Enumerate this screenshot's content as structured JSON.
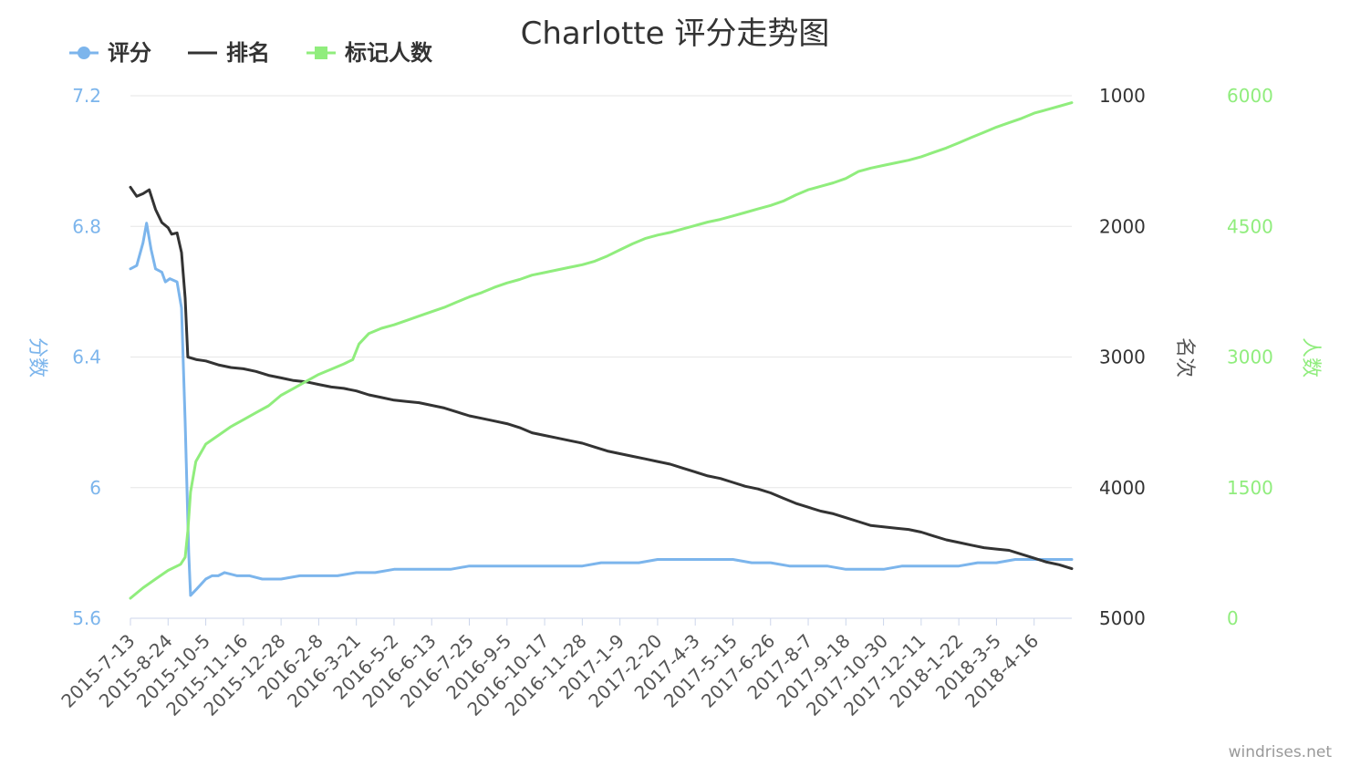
{
  "chart_data": {
    "type": "line",
    "title": "Charlotte 评分走势图",
    "x_tick_labels": [
      "2015-7-13",
      "2015-8-24",
      "2015-10-5",
      "2015-11-16",
      "2015-12-28",
      "2016-2-8",
      "2016-3-21",
      "2016-5-2",
      "2016-6-13",
      "2016-7-25",
      "2016-9-5",
      "2016-10-17",
      "2016-11-28",
      "2017-1-9",
      "2017-2-20",
      "2017-4-3",
      "2017-5-15",
      "2017-6-26",
      "2017-8-7",
      "2017-9-18",
      "2017-10-30",
      "2017-12-11",
      "2018-1-22",
      "2018-3-5",
      "2018-4-16"
    ],
    "x_start": "2015-7-13",
    "x_end": "2018-5-28",
    "axes": {
      "score": {
        "title": "分数",
        "min": 5.6,
        "max": 7.2,
        "ticks": [
          "5.6",
          "6",
          "6.4",
          "6.8",
          "7.2"
        ],
        "color": "#7cb5ec"
      },
      "rank": {
        "title": "名次",
        "min": 1000,
        "max": 5000,
        "reversed": true,
        "ticks": [
          "1000",
          "2000",
          "3000",
          "4000",
          "5000"
        ],
        "color": "#333333"
      },
      "count": {
        "title": "人数",
        "min": 0,
        "max": 6000,
        "ticks": [
          "0",
          "1500",
          "3000",
          "4500",
          "6000"
        ],
        "color": "#90ed7d"
      }
    },
    "grid": true,
    "legend_position": "top-left",
    "series": [
      {
        "name": "评分",
        "axis": "score",
        "color": "#7cb5ec",
        "points": [
          [
            "2015-07-13",
            6.67
          ],
          [
            "2015-07-20",
            6.68
          ],
          [
            "2015-07-27",
            6.75
          ],
          [
            "2015-07-31",
            6.81
          ],
          [
            "2015-08-05",
            6.73
          ],
          [
            "2015-08-10",
            6.67
          ],
          [
            "2015-08-17",
            6.66
          ],
          [
            "2015-08-21",
            6.63
          ],
          [
            "2015-08-26",
            6.64
          ],
          [
            "2015-09-03",
            6.63
          ],
          [
            "2015-09-08",
            6.55
          ],
          [
            "2015-09-12",
            6.2
          ],
          [
            "2015-09-16",
            5.8
          ],
          [
            "2015-09-18",
            5.67
          ],
          [
            "2015-09-25",
            5.69
          ],
          [
            "2015-10-05",
            5.72
          ],
          [
            "2015-10-12",
            5.73
          ],
          [
            "2015-10-19",
            5.73
          ],
          [
            "2015-10-26",
            5.74
          ],
          [
            "2015-11-09",
            5.73
          ],
          [
            "2015-11-23",
            5.73
          ],
          [
            "2015-12-07",
            5.72
          ],
          [
            "2015-12-28",
            5.72
          ],
          [
            "2016-01-18",
            5.73
          ],
          [
            "2016-02-08",
            5.73
          ],
          [
            "2016-02-29",
            5.73
          ],
          [
            "2016-03-21",
            5.74
          ],
          [
            "2016-04-11",
            5.74
          ],
          [
            "2016-05-02",
            5.75
          ],
          [
            "2016-05-23",
            5.75
          ],
          [
            "2016-06-13",
            5.75
          ],
          [
            "2016-07-04",
            5.75
          ],
          [
            "2016-07-25",
            5.76
          ],
          [
            "2016-08-15",
            5.76
          ],
          [
            "2016-09-05",
            5.76
          ],
          [
            "2016-09-26",
            5.76
          ],
          [
            "2016-10-17",
            5.76
          ],
          [
            "2016-11-07",
            5.76
          ],
          [
            "2016-11-28",
            5.76
          ],
          [
            "2016-12-19",
            5.77
          ],
          [
            "2017-01-09",
            5.77
          ],
          [
            "2017-01-30",
            5.77
          ],
          [
            "2017-02-20",
            5.78
          ],
          [
            "2017-03-13",
            5.78
          ],
          [
            "2017-04-03",
            5.78
          ],
          [
            "2017-04-24",
            5.78
          ],
          [
            "2017-05-15",
            5.78
          ],
          [
            "2017-06-05",
            5.77
          ],
          [
            "2017-06-26",
            5.77
          ],
          [
            "2017-07-17",
            5.76
          ],
          [
            "2017-08-07",
            5.76
          ],
          [
            "2017-08-28",
            5.76
          ],
          [
            "2017-09-18",
            5.75
          ],
          [
            "2017-10-09",
            5.75
          ],
          [
            "2017-10-30",
            5.75
          ],
          [
            "2017-11-20",
            5.76
          ],
          [
            "2017-12-11",
            5.76
          ],
          [
            "2018-01-01",
            5.76
          ],
          [
            "2018-01-22",
            5.76
          ],
          [
            "2018-02-12",
            5.77
          ],
          [
            "2018-03-05",
            5.77
          ],
          [
            "2018-03-26",
            5.78
          ],
          [
            "2018-04-16",
            5.78
          ],
          [
            "2018-05-07",
            5.78
          ],
          [
            "2018-05-28",
            5.78
          ]
        ]
      },
      {
        "name": "排名",
        "axis": "rank",
        "color": "#333333",
        "points": [
          [
            "2015-07-13",
            1700
          ],
          [
            "2015-07-20",
            1770
          ],
          [
            "2015-07-27",
            1750
          ],
          [
            "2015-08-03",
            1720
          ],
          [
            "2015-08-10",
            1870
          ],
          [
            "2015-08-17",
            1970
          ],
          [
            "2015-08-24",
            2010
          ],
          [
            "2015-08-28",
            2060
          ],
          [
            "2015-09-03",
            2050
          ],
          [
            "2015-09-08",
            2200
          ],
          [
            "2015-09-12",
            2550
          ],
          [
            "2015-09-15",
            3000
          ],
          [
            "2015-09-25",
            3020
          ],
          [
            "2015-10-05",
            3030
          ],
          [
            "2015-10-19",
            3060
          ],
          [
            "2015-11-02",
            3080
          ],
          [
            "2015-11-16",
            3090
          ],
          [
            "2015-11-30",
            3110
          ],
          [
            "2015-12-14",
            3140
          ],
          [
            "2015-12-28",
            3160
          ],
          [
            "2016-01-11",
            3180
          ],
          [
            "2016-01-25",
            3190
          ],
          [
            "2016-02-08",
            3210
          ],
          [
            "2016-02-22",
            3230
          ],
          [
            "2016-03-07",
            3240
          ],
          [
            "2016-03-21",
            3260
          ],
          [
            "2016-04-04",
            3290
          ],
          [
            "2016-04-18",
            3310
          ],
          [
            "2016-05-02",
            3330
          ],
          [
            "2016-05-16",
            3340
          ],
          [
            "2016-05-30",
            3350
          ],
          [
            "2016-06-13",
            3370
          ],
          [
            "2016-06-27",
            3390
          ],
          [
            "2016-07-11",
            3420
          ],
          [
            "2016-07-25",
            3450
          ],
          [
            "2016-08-08",
            3470
          ],
          [
            "2016-08-22",
            3490
          ],
          [
            "2016-09-05",
            3510
          ],
          [
            "2016-09-19",
            3540
          ],
          [
            "2016-10-03",
            3580
          ],
          [
            "2016-10-17",
            3600
          ],
          [
            "2016-10-31",
            3620
          ],
          [
            "2016-11-14",
            3640
          ],
          [
            "2016-11-28",
            3660
          ],
          [
            "2016-12-12",
            3690
          ],
          [
            "2016-12-26",
            3720
          ],
          [
            "2017-01-09",
            3740
          ],
          [
            "2017-01-23",
            3760
          ],
          [
            "2017-02-06",
            3780
          ],
          [
            "2017-02-20",
            3800
          ],
          [
            "2017-03-06",
            3820
          ],
          [
            "2017-03-20",
            3850
          ],
          [
            "2017-04-03",
            3880
          ],
          [
            "2017-04-17",
            3910
          ],
          [
            "2017-05-01",
            3930
          ],
          [
            "2017-05-15",
            3960
          ],
          [
            "2017-05-29",
            3990
          ],
          [
            "2017-06-12",
            4010
          ],
          [
            "2017-06-26",
            4040
          ],
          [
            "2017-07-10",
            4080
          ],
          [
            "2017-07-24",
            4120
          ],
          [
            "2017-08-07",
            4150
          ],
          [
            "2017-08-21",
            4180
          ],
          [
            "2017-09-04",
            4200
          ],
          [
            "2017-09-18",
            4230
          ],
          [
            "2017-10-02",
            4260
          ],
          [
            "2017-10-16",
            4290
          ],
          [
            "2017-10-30",
            4300
          ],
          [
            "2017-11-13",
            4310
          ],
          [
            "2017-11-27",
            4320
          ],
          [
            "2017-12-11",
            4340
          ],
          [
            "2017-12-25",
            4370
          ],
          [
            "2018-01-08",
            4400
          ],
          [
            "2018-01-22",
            4420
          ],
          [
            "2018-02-05",
            4440
          ],
          [
            "2018-02-19",
            4460
          ],
          [
            "2018-03-05",
            4470
          ],
          [
            "2018-03-19",
            4480
          ],
          [
            "2018-04-02",
            4510
          ],
          [
            "2018-04-16",
            4540
          ],
          [
            "2018-04-30",
            4570
          ],
          [
            "2018-05-14",
            4590
          ],
          [
            "2018-05-28",
            4620
          ]
        ]
      },
      {
        "name": "标记人数",
        "axis": "count",
        "color": "#90ed7d",
        "points": [
          [
            "2015-07-13",
            230
          ],
          [
            "2015-07-27",
            350
          ],
          [
            "2015-08-10",
            450
          ],
          [
            "2015-08-24",
            550
          ],
          [
            "2015-09-07",
            620
          ],
          [
            "2015-09-12",
            700
          ],
          [
            "2015-09-15",
            1000
          ],
          [
            "2015-09-18",
            1450
          ],
          [
            "2015-09-24",
            1800
          ],
          [
            "2015-10-05",
            2000
          ],
          [
            "2015-10-19",
            2100
          ],
          [
            "2015-11-02",
            2200
          ],
          [
            "2015-11-16",
            2280
          ],
          [
            "2015-11-30",
            2360
          ],
          [
            "2015-12-14",
            2440
          ],
          [
            "2015-12-28",
            2560
          ],
          [
            "2016-01-11",
            2640
          ],
          [
            "2016-01-25",
            2720
          ],
          [
            "2016-02-08",
            2800
          ],
          [
            "2016-02-22",
            2860
          ],
          [
            "2016-03-07",
            2920
          ],
          [
            "2016-03-17",
            2970
          ],
          [
            "2016-03-24",
            3150
          ],
          [
            "2016-04-04",
            3270
          ],
          [
            "2016-04-18",
            3330
          ],
          [
            "2016-05-02",
            3370
          ],
          [
            "2016-05-16",
            3420
          ],
          [
            "2016-05-30",
            3470
          ],
          [
            "2016-06-13",
            3520
          ],
          [
            "2016-06-27",
            3570
          ],
          [
            "2016-07-11",
            3630
          ],
          [
            "2016-07-25",
            3690
          ],
          [
            "2016-08-08",
            3740
          ],
          [
            "2016-08-22",
            3800
          ],
          [
            "2016-09-05",
            3850
          ],
          [
            "2016-09-19",
            3890
          ],
          [
            "2016-10-03",
            3940
          ],
          [
            "2016-10-17",
            3970
          ],
          [
            "2016-10-31",
            4000
          ],
          [
            "2016-11-14",
            4030
          ],
          [
            "2016-11-28",
            4060
          ],
          [
            "2016-12-12",
            4100
          ],
          [
            "2016-12-26",
            4160
          ],
          [
            "2017-01-09",
            4230
          ],
          [
            "2017-01-23",
            4300
          ],
          [
            "2017-02-06",
            4360
          ],
          [
            "2017-02-20",
            4400
          ],
          [
            "2017-03-06",
            4430
          ],
          [
            "2017-03-20",
            4470
          ],
          [
            "2017-04-03",
            4510
          ],
          [
            "2017-04-17",
            4550
          ],
          [
            "2017-05-01",
            4580
          ],
          [
            "2017-05-15",
            4620
          ],
          [
            "2017-05-29",
            4660
          ],
          [
            "2017-06-12",
            4700
          ],
          [
            "2017-06-26",
            4740
          ],
          [
            "2017-07-10",
            4790
          ],
          [
            "2017-07-24",
            4860
          ],
          [
            "2017-08-07",
            4920
          ],
          [
            "2017-08-21",
            4960
          ],
          [
            "2017-09-04",
            5000
          ],
          [
            "2017-09-18",
            5050
          ],
          [
            "2017-10-02",
            5130
          ],
          [
            "2017-10-16",
            5170
          ],
          [
            "2017-10-30",
            5200
          ],
          [
            "2017-11-13",
            5230
          ],
          [
            "2017-11-27",
            5260
          ],
          [
            "2017-12-11",
            5300
          ],
          [
            "2017-12-25",
            5350
          ],
          [
            "2018-01-08",
            5400
          ],
          [
            "2018-01-22",
            5460
          ],
          [
            "2018-02-05",
            5520
          ],
          [
            "2018-02-19",
            5580
          ],
          [
            "2018-03-05",
            5640
          ],
          [
            "2018-03-19",
            5690
          ],
          [
            "2018-04-02",
            5740
          ],
          [
            "2018-04-16",
            5800
          ],
          [
            "2018-04-30",
            5840
          ],
          [
            "2018-05-14",
            5880
          ],
          [
            "2018-05-28",
            5920
          ]
        ]
      }
    ]
  },
  "credit": "windrises.net"
}
